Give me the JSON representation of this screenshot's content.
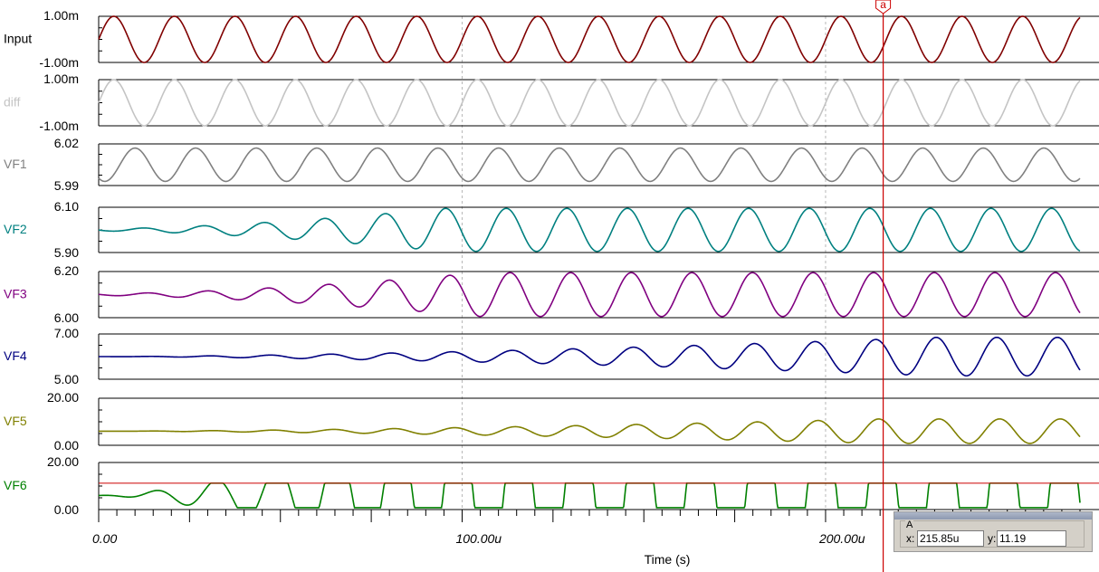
{
  "colors": {
    "background": "#ffffff",
    "cursor": "#cc0000",
    "axis": "#000000",
    "grid": "#b8b8b8"
  },
  "chart_data": {
    "type": "line",
    "xlabel": "Time (s)",
    "xlim": [
      0,
      270
    ],
    "xunit": "u",
    "xticks": [
      {
        "value": 0,
        "label": "0.00"
      },
      {
        "value": 100,
        "label": "100.00u"
      },
      {
        "value": 200,
        "label": "200.00u"
      }
    ],
    "grid": "vertical dashed at major ticks",
    "panels": [
      {
        "name": "Input",
        "color": "#800000",
        "label_color": "#000000",
        "ylim": [
          -1,
          1
        ],
        "ytick_labels": [
          "1.00m",
          "-1.00m"
        ],
        "period": 16.67,
        "amp": 1,
        "offset": 0,
        "phase": 0,
        "kind": "sine"
      },
      {
        "name": "diff",
        "color": "#c4c4c4",
        "label_color": "#c4c4c4",
        "ylim": [
          -1,
          1
        ],
        "ytick_labels": [
          "1.00m",
          "-1.00m"
        ],
        "period": 16.67,
        "amp": 1,
        "offset": 0,
        "phase": 0,
        "kind": "sine"
      },
      {
        "name": "VF1",
        "color": "#808080",
        "label_color": "#808080",
        "ylim": [
          5.99,
          6.02
        ],
        "ytick_labels": [
          "6.02",
          "5.99"
        ],
        "period": 16.67,
        "amp": 0.012,
        "offset": 6.005,
        "phase": -2.2,
        "kind": "sine"
      },
      {
        "name": "VF2",
        "color": "#008080",
        "label_color": "#008080",
        "ylim": [
          5.9,
          6.1
        ],
        "ytick_labels": [
          "6.10",
          "5.90"
        ],
        "period": 16.67,
        "amp_start": 0.005,
        "amp_end": 0.095,
        "offset": 6.0,
        "grow_until": 95,
        "phase": -3.0,
        "kind": "growing"
      },
      {
        "name": "VF3",
        "color": "#800080",
        "label_color": "#800080",
        "ylim": [
          6.0,
          6.2
        ],
        "ytick_labels": [
          "6.20",
          "6.00"
        ],
        "period": 16.67,
        "amp_start": 0.004,
        "amp_end": 0.095,
        "offset": 6.1,
        "grow_until": 105,
        "phase": -3.4,
        "kind": "growing"
      },
      {
        "name": "VF4",
        "color": "#000080",
        "label_color": "#000080",
        "ylim": [
          5.0,
          7.0
        ],
        "ytick_labels": [
          "7.00",
          "5.00"
        ],
        "period": 16.67,
        "amp_start": 0.0,
        "amp_end": 0.85,
        "offset": 6.0,
        "grow_until": 230,
        "phase": -3.6,
        "kind": "growing"
      },
      {
        "name": "VF5",
        "color": "#808000",
        "label_color": "#808000",
        "ylim": [
          0.0,
          20.0
        ],
        "ytick_labels": [
          "20.00",
          "0.00"
        ],
        "period": 16.67,
        "amp_start": 0.0,
        "amp_end": 5.2,
        "offset": 6.0,
        "grow_until": 215,
        "clip_hi": 11.2,
        "clip_lo": 0.8,
        "phase": -3.9,
        "kind": "growing"
      },
      {
        "name": "VF6",
        "color": "#008000",
        "label_color": "#008000",
        "ylim": [
          0.0,
          20.0
        ],
        "ytick_labels": [
          "20.00",
          "0.00"
        ],
        "period": 16.67,
        "amp_start": 0.0,
        "amp_end": 40.0,
        "offset": 6.0,
        "grow_until": 100,
        "clip_hi": 11.2,
        "clip_lo": 0.8,
        "phase": -4.3,
        "kind": "growing",
        "hline": 11.19
      }
    ],
    "cursor": {
      "name": "a",
      "x": 215.85
    }
  },
  "cursor_readout": {
    "group": "A",
    "x_label": "x:",
    "x_value": "215.85u",
    "y_label": "y:",
    "y_value": "11.19"
  }
}
